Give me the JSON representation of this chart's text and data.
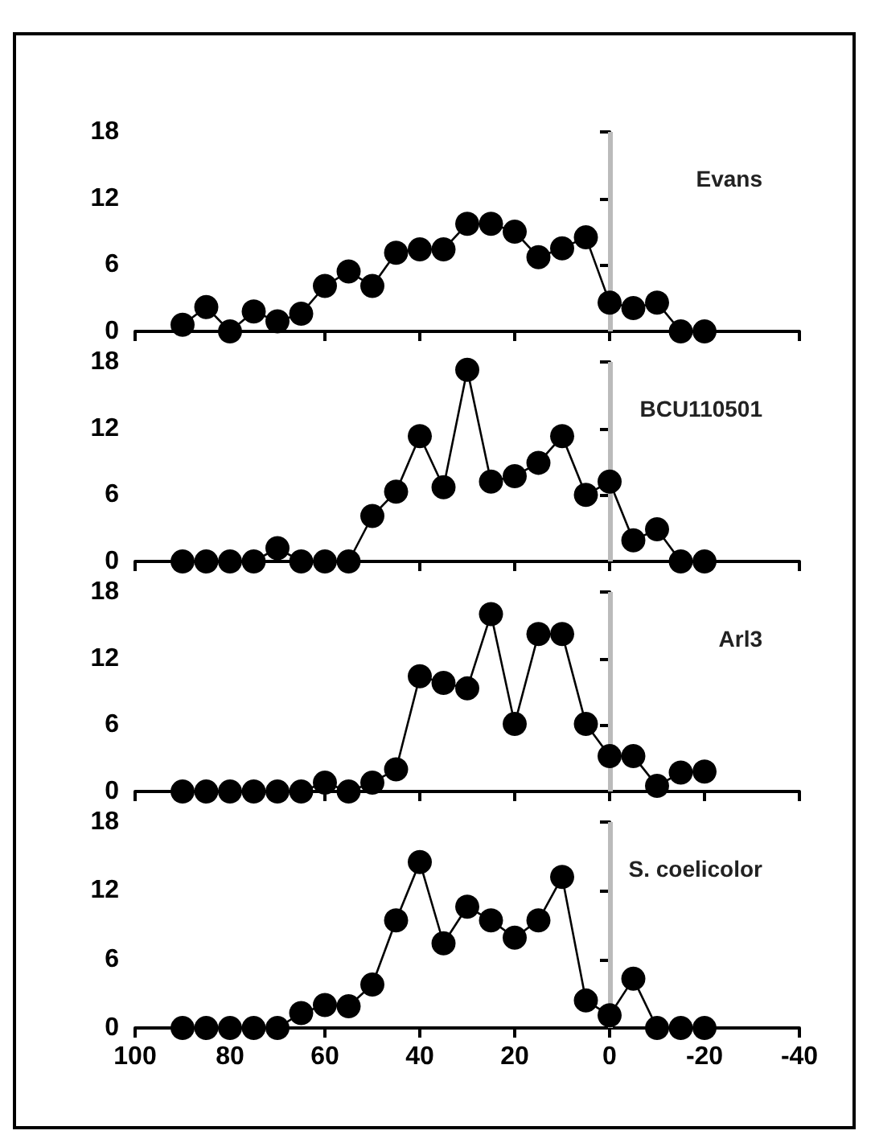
{
  "chart_data": [
    {
      "type": "line",
      "x": [
        90,
        85,
        80,
        75,
        70,
        65,
        60,
        55,
        50,
        45,
        40,
        35,
        30,
        25,
        20,
        15,
        10,
        5,
        0,
        -5,
        -10,
        -15,
        -20
      ],
      "series": [
        {
          "color": "#000000",
          "values": [
            0.6,
            2.2,
            0,
            1.8,
            0.9,
            1.6,
            4.1,
            5.4,
            4.1,
            7.1,
            7.4,
            7.4,
            9.7,
            9.7,
            9,
            6.7,
            7.5,
            8.5,
            2.6,
            2.1,
            2.6,
            0,
            0
          ]
        }
      ],
      "xlim": [
        100,
        -40
      ],
      "xticks": [
        100,
        80,
        60,
        40,
        20,
        0,
        -20,
        -40
      ],
      "ylim": [
        0,
        18
      ],
      "yticks": [
        0,
        6,
        12,
        18
      ],
      "tick_labels": "y",
      "marker": "circle",
      "line_style": "solid",
      "grid": false,
      "ref_lines": [
        {
          "axis": "x",
          "value": 0,
          "color": "#bbbbbb"
        }
      ],
      "annotations": [
        "Evans"
      ]
    },
    {
      "type": "line",
      "x": [
        90,
        85,
        80,
        75,
        70,
        65,
        60,
        55,
        50,
        45,
        40,
        35,
        30,
        25,
        20,
        15,
        10,
        5,
        0,
        -5,
        -10,
        -15,
        -20
      ],
      "series": [
        {
          "color": "#000000",
          "values": [
            0,
            0,
            0,
            0,
            1.2,
            0,
            0,
            0,
            4.1,
            6.3,
            11.3,
            6.7,
            17.3,
            7.2,
            7.7,
            8.9,
            11.3,
            6,
            7.2,
            1.9,
            2.9,
            0,
            0
          ]
        }
      ],
      "xlim": [
        100,
        -40
      ],
      "xticks": [
        100,
        80,
        60,
        40,
        20,
        0,
        -20,
        -40
      ],
      "ylim": [
        0,
        18
      ],
      "yticks": [
        0,
        6,
        12,
        18
      ],
      "tick_labels": "y",
      "marker": "circle",
      "line_style": "solid",
      "grid": false,
      "ref_lines": [
        {
          "axis": "x",
          "value": 0,
          "color": "#bbbbbb"
        }
      ],
      "annotations": [
        "BCU110501"
      ]
    },
    {
      "type": "line",
      "x": [
        90,
        85,
        80,
        75,
        70,
        65,
        60,
        55,
        50,
        45,
        40,
        35,
        30,
        25,
        20,
        15,
        10,
        5,
        0,
        -5,
        -10,
        -15,
        -20
      ],
      "series": [
        {
          "color": "#000000",
          "values": [
            0,
            0,
            0,
            0,
            0,
            0,
            0.8,
            0,
            0.8,
            2,
            10.4,
            9.8,
            9.3,
            16,
            6.1,
            14.2,
            14.2,
            6.1,
            3.2,
            3.2,
            0.5,
            1.7,
            1.8
          ]
        }
      ],
      "xlim": [
        100,
        -40
      ],
      "xticks": [
        100,
        80,
        60,
        40,
        20,
        0,
        -20,
        -40
      ],
      "ylim": [
        0,
        18
      ],
      "yticks": [
        0,
        6,
        12,
        18
      ],
      "tick_labels": "y",
      "marker": "circle",
      "line_style": "solid",
      "grid": false,
      "ref_lines": [
        {
          "axis": "x",
          "value": 0,
          "color": "#bbbbbb"
        }
      ],
      "annotations": [
        "Arl3"
      ]
    },
    {
      "type": "line",
      "x": [
        90,
        85,
        80,
        75,
        70,
        65,
        60,
        55,
        50,
        45,
        40,
        35,
        30,
        25,
        20,
        15,
        10,
        5,
        0,
        -5,
        -10,
        -15,
        -20
      ],
      "series": [
        {
          "color": "#000000",
          "values": [
            0,
            0,
            0,
            0,
            0,
            1.3,
            2,
            1.9,
            3.8,
            9.4,
            14.5,
            7.4,
            10.6,
            9.4,
            7.9,
            9.4,
            13.2,
            2.4,
            1.1,
            4.3,
            0,
            0,
            0
          ]
        }
      ],
      "xlim": [
        100,
        -40
      ],
      "xticks": [
        100,
        80,
        60,
        40,
        20,
        0,
        -20,
        -40
      ],
      "ylim": [
        0,
        18
      ],
      "yticks": [
        0,
        6,
        12,
        18
      ],
      "marker": "circle",
      "line_style": "solid",
      "grid": false,
      "ref_lines": [
        {
          "axis": "x",
          "value": 0,
          "color": "#bbbbbb"
        }
      ],
      "annotations": [
        "S. coelicolor"
      ]
    }
  ]
}
